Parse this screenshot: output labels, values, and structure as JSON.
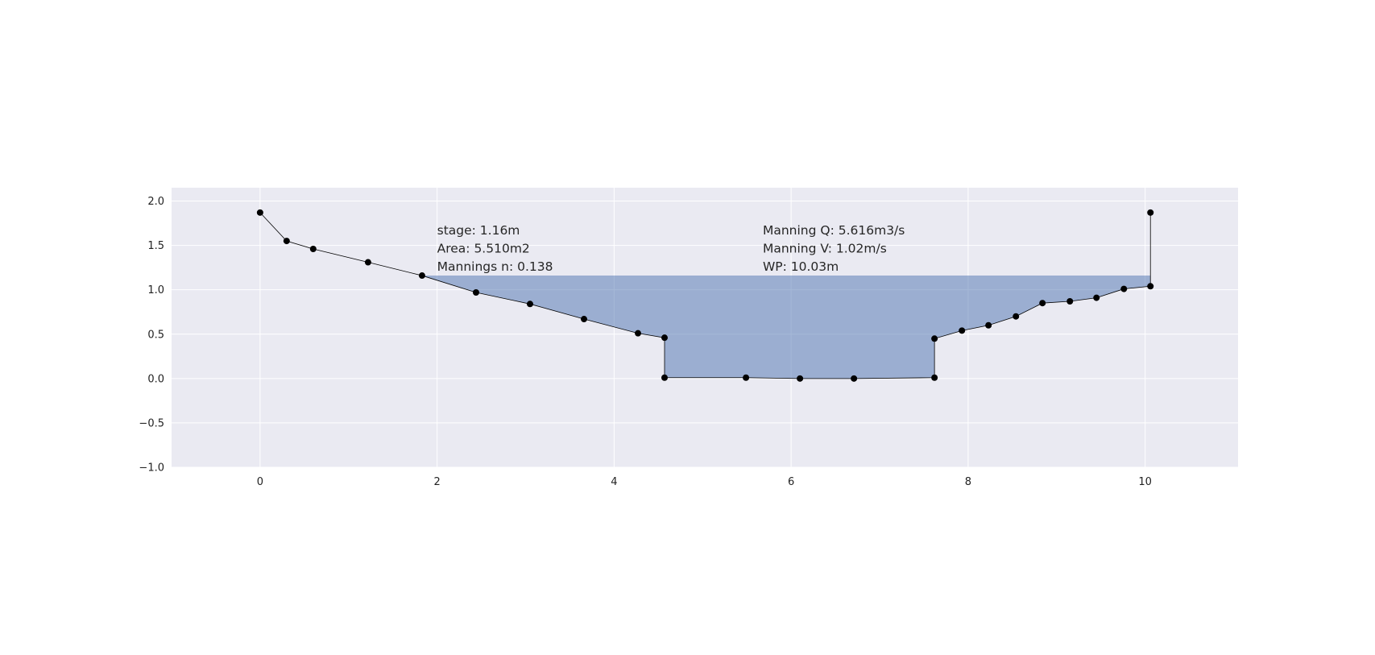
{
  "chart_data": {
    "type": "area",
    "title": "",
    "xlabel": "",
    "ylabel": "",
    "xlim": [
      -1,
      11.05
    ],
    "ylim": [
      -1.0,
      2.15
    ],
    "xticks": [
      0,
      2,
      4,
      6,
      8,
      10
    ],
    "yticks": [
      -1.0,
      -0.5,
      0.0,
      0.5,
      1.0,
      1.5,
      2.0
    ],
    "xtick_labels": [
      "0",
      "2",
      "4",
      "6",
      "8",
      "10"
    ],
    "ytick_labels": [
      "−1.0",
      "−0.5",
      "0.0",
      "0.5",
      "1.0",
      "1.5",
      "2.0"
    ],
    "grid": true,
    "colors": {
      "plot_background": "#eaeaf2",
      "grid": "#ffffff",
      "water_fill": "#4c72b0",
      "profile_line": "#000000",
      "points": "#000000"
    },
    "stage": 1.16,
    "series": [
      {
        "kind": "cross-section-profile",
        "x": [
          0.0,
          0.3,
          0.6,
          1.22,
          1.83,
          2.44,
          3.05,
          3.66,
          4.27,
          4.57,
          4.57,
          5.49,
          6.1,
          6.71,
          7.62,
          7.62,
          7.93,
          8.23,
          8.54,
          8.84,
          9.15,
          9.45,
          9.76,
          10.06,
          10.06
        ],
        "y": [
          1.87,
          1.55,
          1.46,
          1.31,
          1.16,
          0.97,
          0.84,
          0.67,
          0.51,
          0.46,
          0.01,
          0.01,
          0.0,
          0.0,
          0.01,
          0.45,
          0.54,
          0.6,
          0.7,
          0.85,
          0.87,
          0.91,
          1.01,
          1.04,
          1.87
        ]
      }
    ],
    "annotations": {
      "left": [
        "stage: 1.16m",
        "Area: 5.510m2",
        "Mannings n: 0.138"
      ],
      "right": [
        "Manning Q: 5.616m3/s",
        "Manning V: 1.02m/s",
        "WP: 10.03m"
      ],
      "left_x": 2.0,
      "right_x": 5.68,
      "top_y": 1.67
    }
  }
}
